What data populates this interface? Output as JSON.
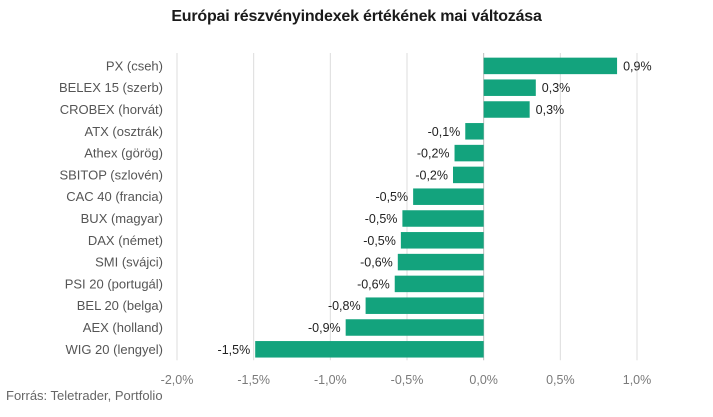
{
  "chart_data": {
    "type": "bar",
    "orientation": "horizontal",
    "title": "Európai részvényindexek értékének mai változása",
    "categories": [
      "PX (cseh)",
      "BELEX 15 (szerb)",
      "CROBEX (horvát)",
      "ATX (osztrák)",
      "Athex (görög)",
      "SBITOP (szlovén)",
      "CAC 40 (francia)",
      "BUX (magyar)",
      "DAX (német)",
      "SMI (svájci)",
      "PSI 20 (portugál)",
      "BEL 20 (belga)",
      "AEX (holland)",
      "WIG 20 (lengyel)"
    ],
    "values": [
      0.87,
      0.34,
      0.3,
      -0.12,
      -0.19,
      -0.2,
      -0.46,
      -0.53,
      -0.54,
      -0.56,
      -0.58,
      -0.77,
      -0.9,
      -1.49
    ],
    "data_labels": [
      "0,9%",
      "0,3%",
      "0,3%",
      "-0,1%",
      "-0,2%",
      "-0,2%",
      "-0,5%",
      "-0,5%",
      "-0,5%",
      "-0,6%",
      "-0,6%",
      "-0,8%",
      "-0,9%",
      "-1,5%"
    ],
    "x_ticks": [
      -2.0,
      -1.5,
      -1.0,
      -0.5,
      0.0,
      0.5,
      1.0
    ],
    "x_tick_labels": [
      "-2,0%",
      "-1,5%",
      "-1,0%",
      "-0,5%",
      "0,0%",
      "0,5%",
      "1,0%"
    ],
    "xlim": [
      -2.0,
      1.0
    ],
    "grid": true,
    "bar_color": "#13a37d",
    "source": "Forrás: Teletrader, Portfolio"
  }
}
